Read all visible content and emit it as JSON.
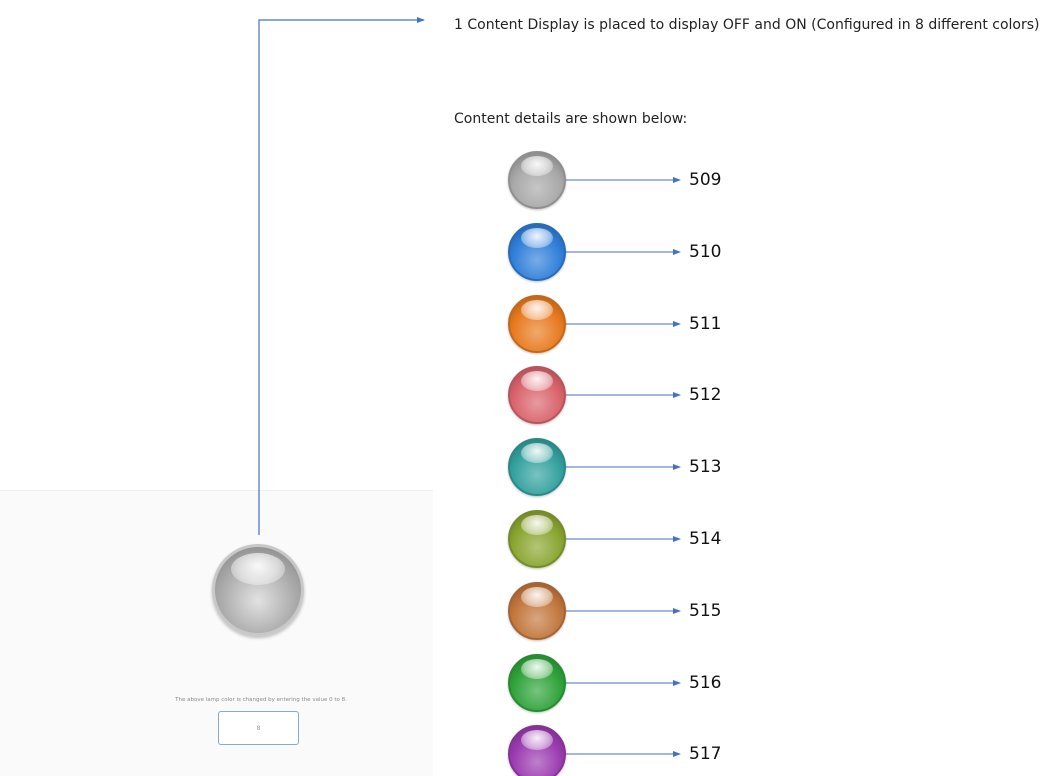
{
  "description_text": "1 Content Display is placed to display OFF and ON (Configured in 8 different colors)",
  "details_heading": "Content details are shown below:",
  "colors": {
    "connector": "#4472c4",
    "main_lamp": "#b4b4b4"
  },
  "contents": [
    {
      "code": "509",
      "color": "#a8a8a8",
      "name": "gray"
    },
    {
      "code": "510",
      "color": "#2f7fd9",
      "name": "blue"
    },
    {
      "code": "511",
      "color": "#e87a1e",
      "name": "orange"
    },
    {
      "code": "512",
      "color": "#d9636c",
      "name": "red"
    },
    {
      "code": "513",
      "color": "#33a19e",
      "name": "teal"
    },
    {
      "code": "514",
      "color": "#8aa530",
      "name": "olive"
    },
    {
      "code": "515",
      "color": "#c2763c",
      "name": "brown"
    },
    {
      "code": "516",
      "color": "#2fa33a",
      "name": "green"
    },
    {
      "code": "517",
      "color": "#9b3bb0",
      "name": "purple"
    }
  ],
  "panel": {
    "hint": "The above lamp color is changed by entering the value 0 to 8.",
    "input_value": "8"
  }
}
